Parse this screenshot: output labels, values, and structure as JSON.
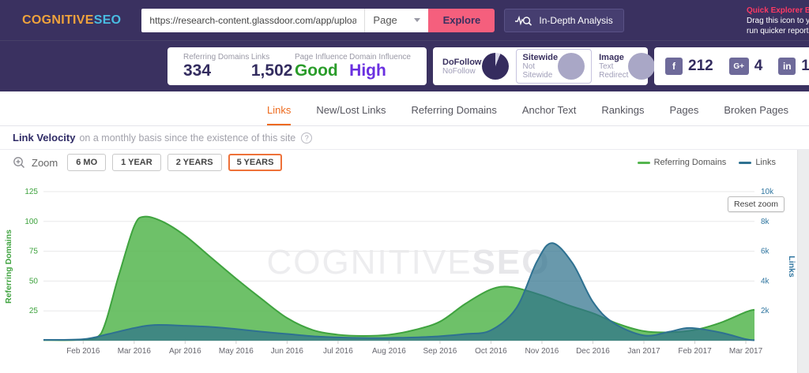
{
  "header": {
    "logo": {
      "primary": "COGNITIVE",
      "secondary": "SEO"
    },
    "url_input": {
      "value": "https://research-content.glassdoor.com/app/uploads/sit"
    },
    "scope_dropdown": {
      "value": "Page"
    },
    "explore_button": "Explore",
    "indepth_button": "In-Depth Analysis",
    "bookmarklet": {
      "title": "Quick Explorer Bookmarklet",
      "line1": "Drag this icon to your",
      "line2": "run quicker reports."
    }
  },
  "stats": {
    "metrics": [
      {
        "label": "Referring Domains",
        "value": "334",
        "color": "#332c5f"
      },
      {
        "label": "Links",
        "value": "1,502",
        "color": "#332c5f"
      },
      {
        "label": "Page Influence",
        "value": "Good",
        "color": "#2a9c2a"
      },
      {
        "label": "Domain Influence",
        "value": "High",
        "color": "#6a30e0"
      }
    ],
    "link_types": [
      {
        "title": "DoFollow",
        "subs": [
          "NoFollow"
        ],
        "pie": "dark",
        "selected": false
      },
      {
        "title": "Sitewide",
        "subs": [
          "Not Sitewide"
        ],
        "pie": "light",
        "selected": true
      },
      {
        "title": "Image",
        "subs": [
          "Text",
          "Redirect"
        ],
        "pie": "light",
        "selected": false
      }
    ],
    "social": [
      {
        "network": "facebook",
        "glyph": "f",
        "count": "212"
      },
      {
        "network": "google-plus",
        "glyph": "G+",
        "count": "4"
      },
      {
        "network": "linkedin",
        "glyph": "in",
        "count": "1"
      }
    ],
    "pie_colors": {
      "dark": "#352c5e",
      "dark_slice": "#d9d7e8",
      "light": "#a9a7c6"
    }
  },
  "tabs": [
    {
      "label": "Links",
      "active": true
    },
    {
      "label": "New/Lost Links",
      "active": false
    },
    {
      "label": "Referring Domains",
      "active": false
    },
    {
      "label": "Anchor Text",
      "active": false
    },
    {
      "label": "Rankings",
      "active": false
    },
    {
      "label": "Pages",
      "active": false
    },
    {
      "label": "Broken Pages",
      "active": false
    }
  ],
  "section_header": {
    "title": "Link Velocity",
    "subtitle": "on a monthly basis since the existence of this site",
    "help_glyph": "?"
  },
  "zoom_controls": {
    "label": "Zoom",
    "buttons": [
      {
        "label": "6 MO",
        "active": false
      },
      {
        "label": "1 YEAR",
        "active": false
      },
      {
        "label": "2 YEARS",
        "active": false
      },
      {
        "label": "5 YEARS",
        "active": true
      }
    ]
  },
  "legend": [
    {
      "label": "Referring Domains",
      "color": "#54b54e"
    },
    {
      "label": "Links",
      "color": "#2e7191"
    }
  ],
  "chart_data": {
    "type": "area",
    "title": "Link Velocity",
    "watermark": {
      "light": "COGNITIVE",
      "bold": "SEO"
    },
    "reset_zoom_label": "Reset zoom",
    "grid": true,
    "x_ticks": [
      "Feb 2016",
      "Mar 2016",
      "Apr 2016",
      "May 2016",
      "Jun 2016",
      "Jul 2016",
      "Aug 2016",
      "Sep 2016",
      "Oct 2016",
      "Nov 2016",
      "Dec 2016",
      "Jan 2017",
      "Feb 2017",
      "Mar 2017"
    ],
    "x_domain": {
      "t_min": -0.78,
      "t_max": 13.17
    },
    "y_left": {
      "label": "Referring Domains",
      "ticks": [
        "25",
        "50",
        "75",
        "100",
        "125"
      ],
      "tick_values": [
        25,
        50,
        75,
        100,
        125
      ],
      "max": 125,
      "color": "#3fa33f"
    },
    "y_right": {
      "label": "Links",
      "ticks": [
        "2k",
        "4k",
        "6k",
        "8k",
        "10k"
      ],
      "tick_values_k": [
        2,
        4,
        6,
        8,
        10
      ],
      "max_k": 10,
      "color": "#3076a0"
    },
    "series": [
      {
        "name": "Referring Domains",
        "axis": "left",
        "stroke": "#3fa33f",
        "fill": "rgba(85,182,79,0.85)",
        "points": [
          [
            -0.78,
            0.5
          ],
          [
            0,
            1
          ],
          [
            0.35,
            6
          ],
          [
            0.7,
            55
          ],
          [
            1.0,
            96
          ],
          [
            1.2,
            104
          ],
          [
            1.55,
            100
          ],
          [
            2.0,
            88
          ],
          [
            2.5,
            70
          ],
          [
            3.0,
            52
          ],
          [
            3.5,
            35
          ],
          [
            4.0,
            19
          ],
          [
            4.5,
            9
          ],
          [
            5.0,
            5
          ],
          [
            5.5,
            4
          ],
          [
            6.0,
            5
          ],
          [
            6.5,
            9
          ],
          [
            7.0,
            16
          ],
          [
            7.5,
            31
          ],
          [
            8.0,
            43
          ],
          [
            8.4,
            45
          ],
          [
            9.0,
            38
          ],
          [
            9.5,
            30
          ],
          [
            10.0,
            23
          ],
          [
            10.5,
            14
          ],
          [
            11.0,
            8
          ],
          [
            11.5,
            7
          ],
          [
            12.0,
            9
          ],
          [
            12.5,
            15
          ],
          [
            13.0,
            24
          ],
          [
            13.17,
            26
          ]
        ]
      },
      {
        "name": "Links",
        "axis": "right",
        "stroke": "#2e7191",
        "fill": "rgba(47,113,140,0.72)",
        "points": [
          [
            -0.78,
            0.05
          ],
          [
            0,
            0.1
          ],
          [
            0.5,
            0.45
          ],
          [
            1.0,
            0.85
          ],
          [
            1.4,
            1.05
          ],
          [
            2.0,
            1.0
          ],
          [
            2.6,
            0.9
          ],
          [
            3.0,
            0.78
          ],
          [
            3.5,
            0.6
          ],
          [
            4.0,
            0.45
          ],
          [
            4.5,
            0.3
          ],
          [
            5.0,
            0.22
          ],
          [
            5.5,
            0.18
          ],
          [
            6.0,
            0.18
          ],
          [
            6.5,
            0.22
          ],
          [
            7.0,
            0.3
          ],
          [
            7.5,
            0.45
          ],
          [
            8.0,
            0.7
          ],
          [
            8.5,
            2.2
          ],
          [
            8.9,
            5.3
          ],
          [
            9.2,
            6.55
          ],
          [
            9.6,
            5.2
          ],
          [
            10.0,
            2.6
          ],
          [
            10.4,
            1.2
          ],
          [
            11.0,
            0.35
          ],
          [
            11.5,
            0.6
          ],
          [
            11.9,
            0.85
          ],
          [
            12.5,
            0.55
          ],
          [
            13.0,
            0.1
          ],
          [
            13.17,
            0.03
          ]
        ]
      }
    ]
  }
}
